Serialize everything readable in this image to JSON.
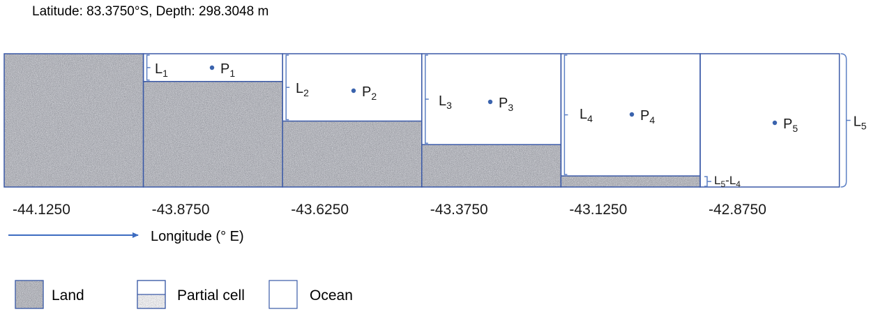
{
  "header": "Latitude: 83.3750°S, Depth: 298.3048 m",
  "x_axis": {
    "ticks": [
      "-44.1250",
      "-43.8750",
      "-43.6250",
      "-43.3750",
      "-43.1250",
      "-42.8750"
    ],
    "label": "Longitude (° E)"
  },
  "cells": [
    {
      "kind": "land",
      "ocean_fraction": 0.0
    },
    {
      "kind": "partial",
      "ocean_fraction": 0.208,
      "level": {
        "sym": "L",
        "sub": "1"
      },
      "point": {
        "sym": "P",
        "sub": "1"
      }
    },
    {
      "kind": "partial",
      "ocean_fraction": 0.505,
      "level": {
        "sym": "L",
        "sub": "2"
      },
      "point": {
        "sym": "P",
        "sub": "2"
      }
    },
    {
      "kind": "partial",
      "ocean_fraction": 0.682,
      "level": {
        "sym": "L",
        "sub": "3"
      },
      "point": {
        "sym": "P",
        "sub": "3"
      }
    },
    {
      "kind": "partial",
      "ocean_fraction": 0.917,
      "level": {
        "sym": "L",
        "sub": "4"
      },
      "point": {
        "sym": "P",
        "sub": "4"
      }
    },
    {
      "kind": "ocean",
      "ocean_fraction": 1.0,
      "point": {
        "sym": "P",
        "sub": "5"
      }
    }
  ],
  "full_level": {
    "sym": "L",
    "sub": "5"
  },
  "difference_label": {
    "a_sym": "L",
    "a_sub": "5",
    "op": "-",
    "b_sym": "L",
    "b_sub": "4"
  },
  "legend": {
    "land": "Land",
    "partial": "Partial cell",
    "ocean": "Ocean"
  },
  "colors": {
    "cell_border": "#3a59a7",
    "bracket": "#5b7fc4",
    "point": "#3a63ad",
    "arrow": "#3d6cc1",
    "text": "#1a1a1a"
  }
}
